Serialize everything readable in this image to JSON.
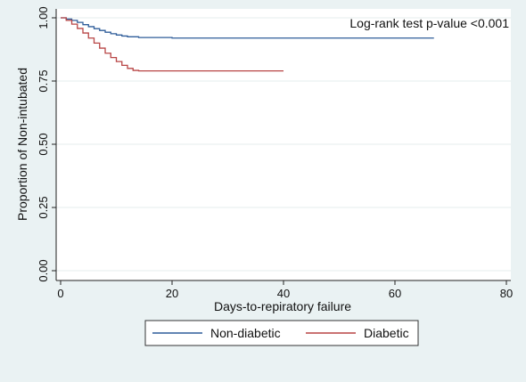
{
  "chart_data": {
    "type": "line",
    "title": "",
    "xlabel": "Days-to-repiratory failure",
    "ylabel": "Proportion of Non-intubated",
    "xlim": [
      0,
      80
    ],
    "ylim": [
      0,
      1
    ],
    "x_ticks": [
      0,
      20,
      40,
      60,
      80
    ],
    "x_tick_labels": [
      "0",
      "20",
      "40",
      "60",
      "80"
    ],
    "y_ticks": [
      0,
      0.25,
      0.5,
      0.75,
      1
    ],
    "y_tick_labels": [
      "0.00",
      "0.25",
      "0.50",
      "0.75",
      "1.00"
    ],
    "grid": "horizontal",
    "legend_position": "bottom",
    "annotation": "Log-rank test p-value <0.001",
    "series": [
      {
        "name": "Non-diabetic",
        "color": "#2f5d9a",
        "x": [
          0,
          1,
          2,
          3,
          4,
          5,
          6,
          7,
          8,
          9,
          10,
          11,
          12,
          14,
          20,
          67
        ],
        "y": [
          1.0,
          0.995,
          0.99,
          0.982,
          0.973,
          0.965,
          0.957,
          0.95,
          0.943,
          0.937,
          0.932,
          0.928,
          0.925,
          0.922,
          0.92,
          0.92
        ]
      },
      {
        "name": "Diabetic",
        "color": "#b84545",
        "x": [
          0,
          1,
          2,
          3,
          4,
          5,
          6,
          7,
          8,
          9,
          10,
          11,
          12,
          13,
          14,
          40
        ],
        "y": [
          1.0,
          0.99,
          0.975,
          0.958,
          0.94,
          0.92,
          0.9,
          0.88,
          0.86,
          0.843,
          0.827,
          0.812,
          0.8,
          0.792,
          0.79,
          0.79
        ]
      }
    ]
  }
}
